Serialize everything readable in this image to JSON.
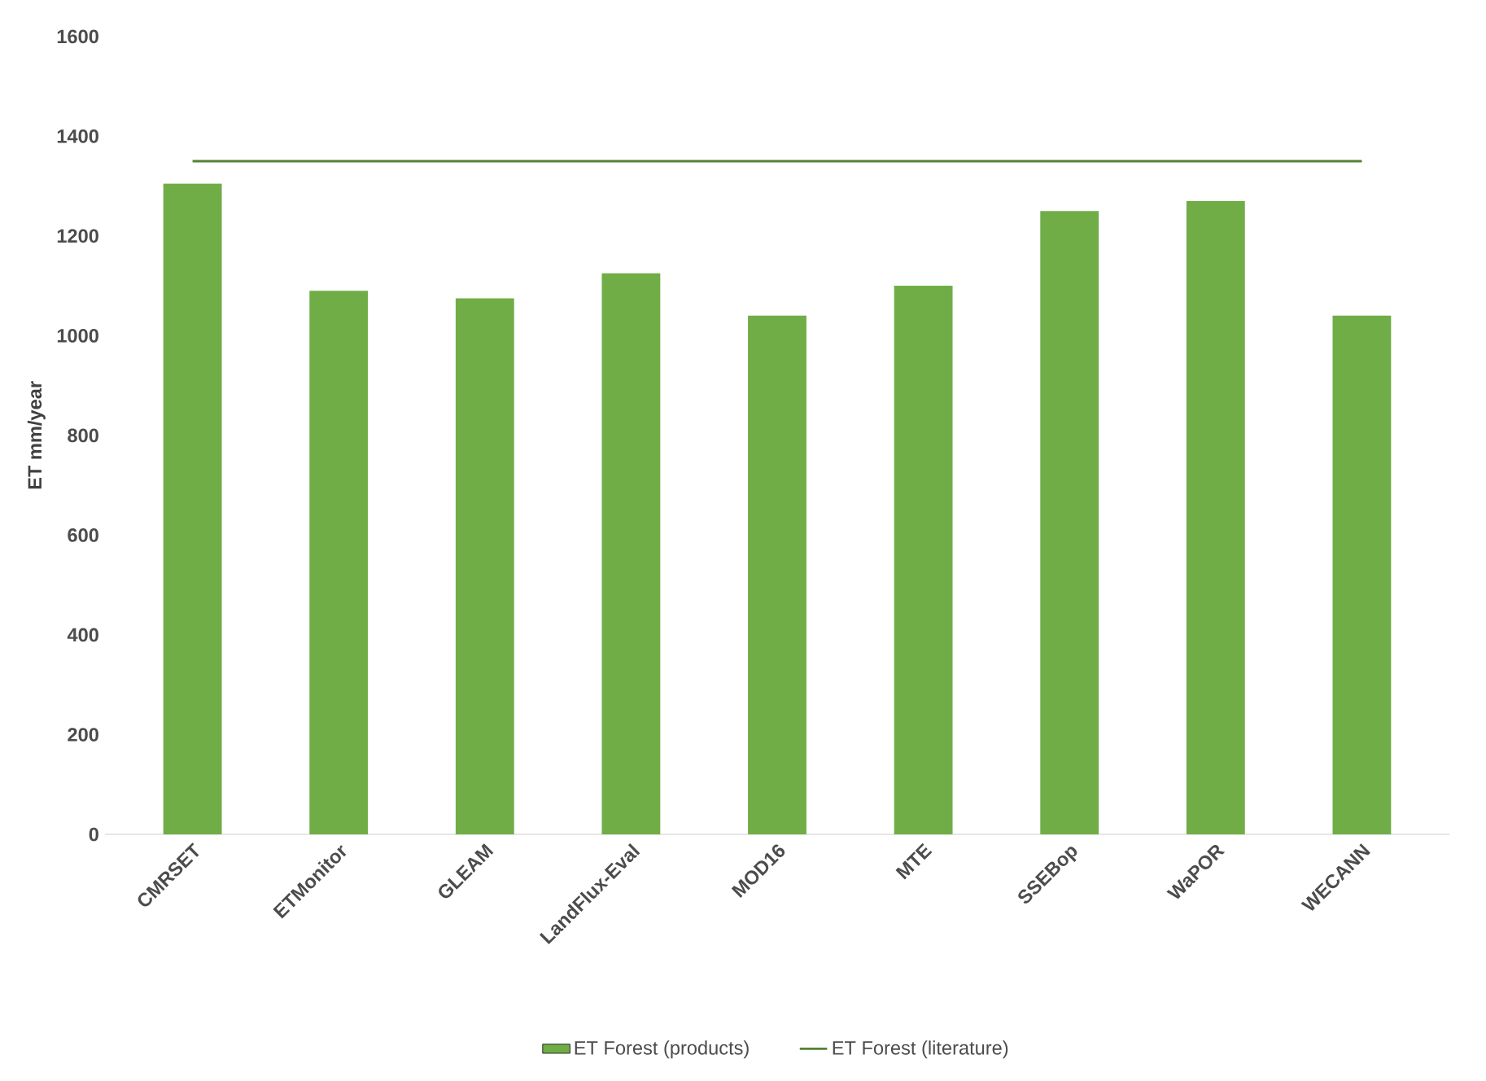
{
  "chart_data": {
    "type": "bar",
    "ylabel": "ET mm/year",
    "categories": [
      "CMRSET",
      "ETMonitor",
      "GLEAM",
      "LandFlux-Eval",
      "MOD16",
      "MTE",
      "SSEBop",
      "WaPOR",
      "WECANN"
    ],
    "series": [
      {
        "name": "ET Forest (products)",
        "color": "#70ad47",
        "values": [
          1305,
          1090,
          1075,
          1125,
          1040,
          1100,
          1250,
          1270,
          1040
        ]
      },
      {
        "name": "ET Forest (literature)",
        "type": "line",
        "color": "#548235",
        "marker": "none",
        "values": [
          1350,
          1350,
          1350,
          1350,
          1350,
          1350,
          1350,
          1350,
          1350
        ]
      }
    ],
    "ylim": [
      0,
      1600
    ],
    "yticks": [
      0,
      200,
      400,
      600,
      800,
      1000,
      1200,
      1400,
      1600
    ],
    "grid": false,
    "legend": "bottom"
  }
}
